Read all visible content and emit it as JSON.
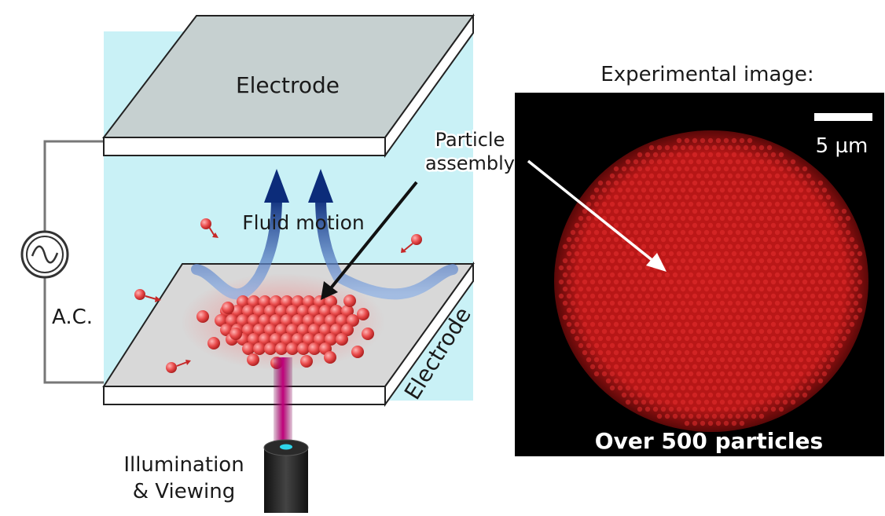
{
  "diagram": {
    "top_electrode_label": "Electrode",
    "bottom_electrode_label": "Electrode",
    "fluid_motion_label": "Fluid motion",
    "particle_assembly_label_line1": "Particle",
    "particle_assembly_label_line2": "assembly",
    "ac_source_label": "A.C.",
    "illumination_label_line1": "Illumination",
    "illumination_label_line2": "& Viewing"
  },
  "experimental_panel": {
    "title": "Experimental image:",
    "scale_bar_label": "5 µm",
    "caption": "Over 500 particles"
  },
  "colors": {
    "fluid": "#c9f1f6",
    "electrode_top": "#c6d0d0",
    "electrode_bottom": "#d8d8d8",
    "particle": "#e84a4a",
    "flow_arrow": "#1a3f8f",
    "experimental_bg": "#000000",
    "cluster": "#d91f1f",
    "beam": "#b0006e"
  }
}
